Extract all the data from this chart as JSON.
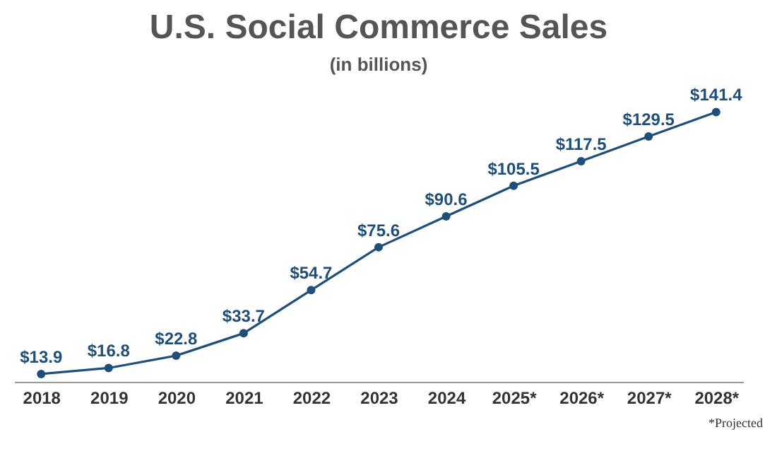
{
  "chart_data": {
    "type": "line",
    "title": "U.S. Social Commerce Sales",
    "subtitle": "(in billions)",
    "categories": [
      "2018",
      "2019",
      "2020",
      "2021",
      "2022",
      "2023",
      "2024",
      "2025*",
      "2026*",
      "2027*",
      "2028*"
    ],
    "series": [
      {
        "color": "#1f4e79",
        "values": [
          13.9,
          16.8,
          22.8,
          33.7,
          54.7,
          75.6,
          90.6,
          105.5,
          117.5,
          129.5,
          141.4
        ],
        "value_labels": [
          "$13.9",
          "$16.8",
          "$22.8",
          "$33.7",
          "$54.7",
          "$75.6",
          "$90.6",
          "$105.5",
          "$117.5",
          "$129.5",
          "$141.4"
        ]
      }
    ],
    "marker": "circle",
    "line_style": "solid",
    "grid": false,
    "tick_labels": "x",
    "annotations": [
      "*Projected"
    ]
  }
}
